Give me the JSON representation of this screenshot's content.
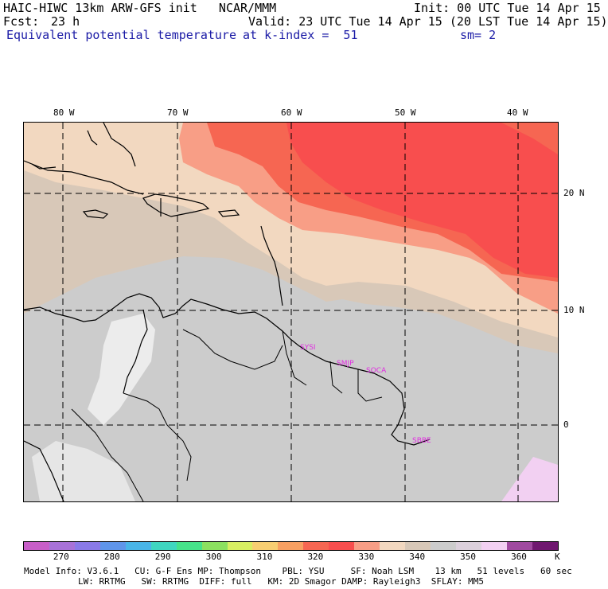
{
  "header": {
    "title_left": "HAIC-HIWC 13km ARW-GFS init   NCAR/MMM",
    "init": "Init: 00 UTC Tue 14 Apr 15",
    "fcst_label": "Fcst:",
    "fcst_value": "23 h",
    "valid": "Valid: 23 UTC Tue 14 Apr 15 (20 LST Tue 14 Apr 15)",
    "field": "Equivalent potential temperature",
    "level": "at k-index =  51",
    "smooth": "sm= 2"
  },
  "axes": {
    "lon_labels": [
      "80 W",
      "70 W",
      "60 W",
      "50 W",
      "40 W"
    ],
    "lat_labels": [
      "20 N",
      "10 N",
      "0"
    ]
  },
  "stations": [
    "SYSI",
    "SMJP",
    "SOCA",
    "SBBE"
  ],
  "colorbar": {
    "ticks": [
      "270",
      "280",
      "290",
      "300",
      "310",
      "320",
      "330",
      "340",
      "350",
      "360",
      "K"
    ],
    "colors": [
      "#c85ec8",
      "#a872d8",
      "#8a7ae8",
      "#5f95ea",
      "#49b5e8",
      "#3fd6c0",
      "#46e28a",
      "#8ce060",
      "#d8ee62",
      "#f8ce72",
      "#f8a062",
      "#f66652",
      "#f84e4e",
      "#f89e86",
      "#f2d8c0",
      "#d8c8b8",
      "#cccccc",
      "#dcd0dc",
      "#f2d0f2",
      "#a04aa0",
      "#701870"
    ]
  },
  "footer": {
    "line1": "Model Info: V3.6.1   CU: G-F Ens MP: Thompson    PBL: YSU     SF: Noah LSM    13 km   51 levels   60 sec",
    "line2": "LW: RRTMG   SW: RRTMG  DIFF: full   KM: 2D Smagor DAMP: Rayleigh3  SFLAY: MM5"
  }
}
